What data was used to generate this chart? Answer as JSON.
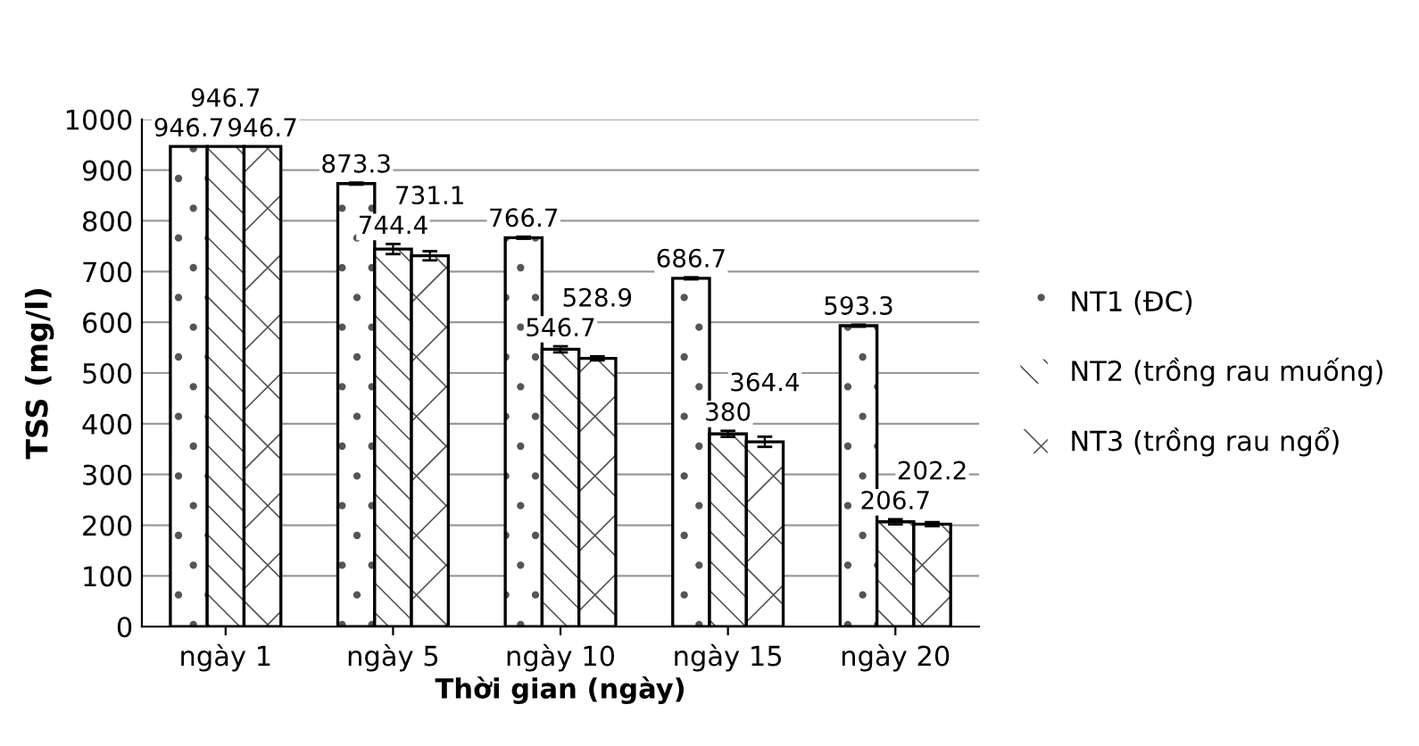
{
  "chart_data": {
    "type": "bar",
    "xlabel": "Thời gian (ngày)",
    "ylabel": "TSS (mg/l)",
    "categories": [
      "ngày 1",
      "ngày 5",
      "ngày 10",
      "ngày 15",
      "ngày 20"
    ],
    "series": [
      {
        "name": "NT1 (ĐC)",
        "color": "#ffffff",
        "values": [
          946.7,
          873.3,
          766.7,
          686.7,
          593.3
        ],
        "errors": [
          null,
          2,
          2,
          2,
          2
        ]
      },
      {
        "name": "NT2 (trồng rau muống)",
        "color": "#ffffff",
        "values": [
          946.7,
          744.4,
          546.7,
          380,
          206.7
        ],
        "errors": [
          null,
          10,
          6,
          6,
          5
        ]
      },
      {
        "name": "NT3 (trồng rau ngổ)",
        "color": "#ffffff",
        "values": [
          946.7,
          731.1,
          528.9,
          364.4,
          202.2
        ],
        "errors": [
          null,
          9,
          4,
          10,
          4
        ]
      }
    ],
    "ylim": [
      0,
      1000
    ],
    "yticks": [
      0,
      100,
      200,
      300,
      400,
      500,
      600,
      700,
      800,
      900,
      1000
    ],
    "grid": "y",
    "legend": "right",
    "data_labels": true
  }
}
